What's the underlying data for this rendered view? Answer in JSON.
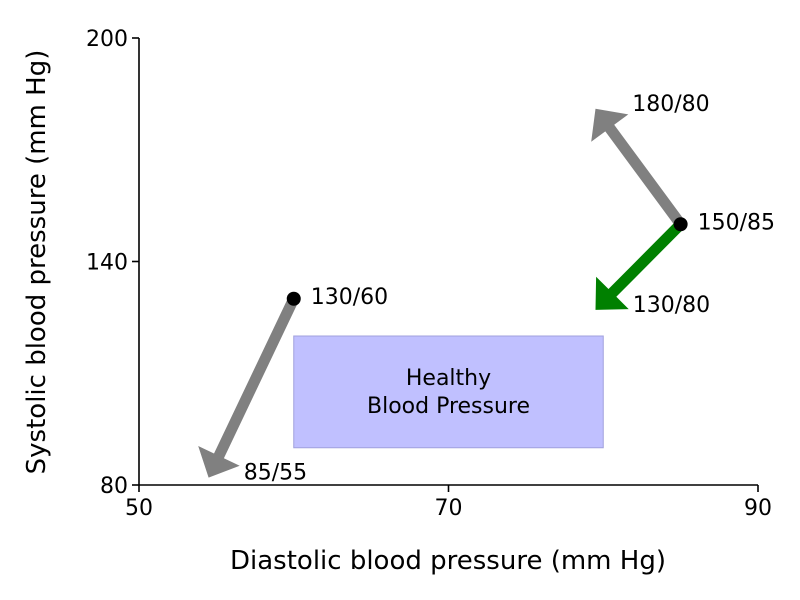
{
  "chart_data": {
    "type": "scatter",
    "title": "",
    "xlabel": "Diastolic blood pressure (mm Hg)",
    "ylabel": "Systolic blood pressure (mm Hg)",
    "xlim": [
      50,
      90
    ],
    "ylim": [
      80,
      200
    ],
    "xticks": [
      50,
      70,
      90
    ],
    "yticks": [
      80,
      140,
      200
    ],
    "grid": false,
    "region": {
      "label_line1": "Healthy",
      "label_line2": "Blood Pressure",
      "x": [
        60,
        80
      ],
      "y": [
        90,
        120
      ],
      "color": "#c0c0ff"
    },
    "points": [
      {
        "name": "point-130-60",
        "x": 60,
        "y": 130,
        "label": "130/60"
      },
      {
        "name": "point-150-85",
        "x": 85,
        "y": 150,
        "label": "150/85"
      }
    ],
    "arrows": [
      {
        "name": "arrow-to-85-55",
        "from": [
          60,
          130
        ],
        "to": [
          54.5,
          82
        ],
        "label": "85/55",
        "color": "#808080"
      },
      {
        "name": "arrow-to-180-80",
        "from": [
          85,
          150
        ],
        "to": [
          79.5,
          181
        ],
        "label": "180/80",
        "color": "#808080"
      },
      {
        "name": "arrow-to-130-80",
        "from": [
          85,
          150
        ],
        "to": [
          79.5,
          127
        ],
        "label": "130/80",
        "color": "#008000"
      }
    ]
  }
}
